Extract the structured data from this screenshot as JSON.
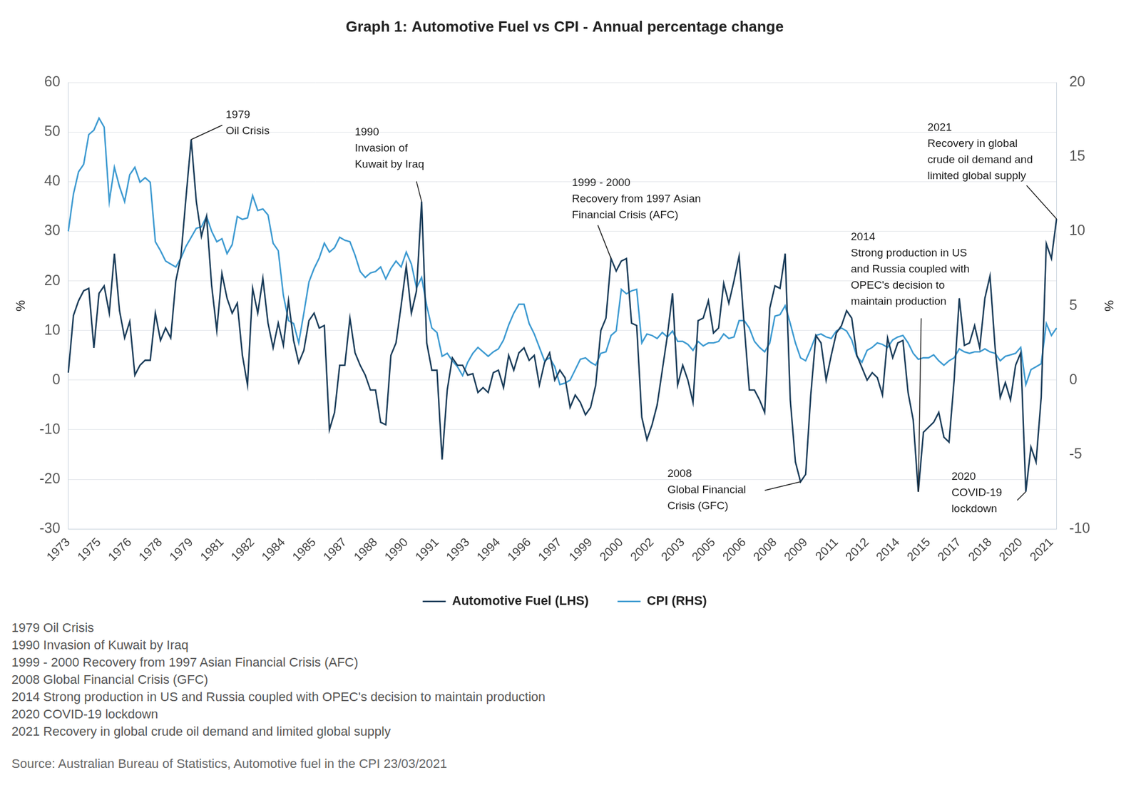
{
  "chart_data": {
    "type": "line",
    "title": "Graph 1: Automotive Fuel vs CPI - Annual percentage change",
    "ylabel": "%",
    "y2label": "%",
    "categories": [
      "1973",
      null,
      null,
      null,
      null,
      null,
      "1975",
      null,
      null,
      null,
      null,
      null,
      "1976",
      null,
      null,
      null,
      null,
      null,
      "1978",
      null,
      null,
      null,
      null,
      null,
      "1979",
      null,
      null,
      null,
      null,
      null,
      "1981",
      null,
      null,
      null,
      null,
      null,
      "1982",
      null,
      null,
      null,
      null,
      null,
      "1984",
      null,
      null,
      null,
      null,
      null,
      "1985",
      null,
      null,
      null,
      null,
      null,
      "1987",
      null,
      null,
      null,
      null,
      null,
      "1988",
      null,
      null,
      null,
      null,
      null,
      "1990",
      null,
      null,
      null,
      null,
      null,
      "1991",
      null,
      null,
      null,
      null,
      null,
      "1993",
      null,
      null,
      null,
      null,
      null,
      "1994",
      null,
      null,
      null,
      null,
      null,
      "1996",
      null,
      null,
      null,
      null,
      null,
      "1997",
      null,
      null,
      null,
      null,
      null,
      "1999",
      null,
      null,
      null,
      null,
      null,
      "2000",
      null,
      null,
      null,
      null,
      null,
      "2002",
      null,
      null,
      null,
      null,
      null,
      "2003",
      null,
      null,
      null,
      null,
      null,
      "2005",
      null,
      null,
      null,
      null,
      null,
      "2006",
      null,
      null,
      null,
      null,
      null,
      "2008",
      null,
      null,
      null,
      null,
      null,
      "2009",
      null,
      null,
      null,
      null,
      null,
      "2011",
      null,
      null,
      null,
      null,
      null,
      "2012",
      null,
      null,
      null,
      null,
      null,
      "2014",
      null,
      null,
      null,
      null,
      null,
      "2015",
      null,
      null,
      null,
      null,
      null,
      "2017",
      null,
      null,
      null,
      null,
      null,
      "2018",
      null,
      null,
      null,
      null,
      null,
      "2020",
      null,
      null,
      null,
      null,
      null,
      "2021",
      null
    ],
    "series": [
      {
        "name": "Automotive Fuel (LHS)",
        "color": "#1b3d5a",
        "values": [
          1.5,
          13,
          16,
          18,
          18.5,
          6.5,
          17.5,
          19,
          13.5,
          25.5,
          14,
          8.5,
          11.8,
          1,
          3,
          4,
          4,
          13.5,
          8,
          10.5,
          8.5,
          20,
          25,
          37,
          48.5,
          36,
          29,
          33,
          19,
          10,
          21.5,
          16.5,
          13.5,
          15.5,
          5,
          -1,
          18.5,
          13.5,
          20.5,
          11.5,
          6.5,
          11.5,
          7,
          16,
          8,
          3.5,
          6,
          12,
          13.5,
          10.5,
          11,
          -10,
          -6.5,
          3,
          3,
          12.5,
          5.5,
          3,
          1,
          -2,
          -2,
          -8.5,
          -9,
          5,
          7.5,
          15,
          23,
          13.5,
          18,
          36,
          7.5,
          2,
          2,
          -16,
          -2,
          4.5,
          3,
          3,
          1,
          1.3,
          -2.5,
          -1.5,
          -2.5,
          1.5,
          2,
          -1.5,
          5,
          2,
          5.5,
          6.5,
          4,
          5,
          -1,
          3.5,
          5.5,
          0,
          2,
          0.5,
          -5.5,
          -3,
          -4.5,
          -7,
          -5.5,
          -1,
          10,
          12.5,
          24.5,
          22,
          24,
          24.5,
          11.5,
          11,
          -7.5,
          -12,
          -9,
          -5,
          2,
          9,
          17.5,
          -1,
          3,
          0,
          -4.5,
          12,
          12.5,
          16,
          9.5,
          10.5,
          19.5,
          15.5,
          20,
          25,
          11,
          -2,
          -2,
          -4,
          -6.5,
          14.5,
          19,
          18.5,
          25.5,
          -4,
          -16.5,
          -20.5,
          -19,
          -3,
          9,
          7.5,
          0,
          5,
          9.5,
          11,
          14,
          12.5,
          5,
          2.5,
          0,
          1.5,
          0.5,
          -3,
          8.5,
          4.5,
          7.5,
          8,
          -2.5,
          -8,
          -22.5,
          -10.5,
          -9.5,
          -8.5,
          -6.5,
          -11.5,
          -12.5,
          0,
          16.5,
          7,
          7.5,
          11,
          6.5,
          16.5,
          21,
          6.5,
          -3.5,
          -0.5,
          -4,
          3,
          5.5,
          -22.5,
          -13.5,
          -16.5,
          -3.5,
          27.5,
          24.5,
          32.5
        ]
      },
      {
        "name": "CPI (RHS)",
        "color": "#3d9ad1",
        "axis": "y2",
        "values": [
          10,
          12.5,
          14,
          14.5,
          16.5,
          16.8,
          17.6,
          17,
          12,
          14.3,
          13,
          12,
          13.8,
          14.3,
          13.3,
          13.6,
          13.3,
          9.3,
          8.7,
          8,
          7.8,
          7.6,
          8.2,
          9,
          9.6,
          10.2,
          10.3,
          11,
          10,
          9.3,
          9.5,
          8.5,
          9.1,
          11,
          10.8,
          10.9,
          12.4,
          11.4,
          11.5,
          11.1,
          9.2,
          8.7,
          5.7,
          4,
          3.8,
          2.5,
          4.5,
          6.6,
          7.5,
          8.2,
          9.2,
          8.6,
          8.9,
          9.6,
          9.4,
          9.3,
          8.4,
          7.3,
          6.9,
          7.2,
          7.3,
          7.6,
          6.8,
          7.5,
          8,
          7.6,
          8.6,
          7.8,
          6.2,
          6.9,
          5,
          3.5,
          3.2,
          1.6,
          1.8,
          1.3,
          0.9,
          0.3,
          1.2,
          1.8,
          2.2,
          1.9,
          1.6,
          1.9,
          2.1,
          2.7,
          3.7,
          4.5,
          5.1,
          5.1,
          3.8,
          3.1,
          2.2,
          1.3,
          1.5,
          0.9,
          -0.3,
          -0.2,
          0,
          0.7,
          1.4,
          1.5,
          1.2,
          1,
          1.8,
          1.9,
          3,
          3.3,
          6.1,
          5.8,
          6,
          6.1,
          2.5,
          3.1,
          3,
          2.8,
          3.2,
          2.9,
          3.3,
          2.6,
          2.6,
          2.4,
          2,
          2.6,
          2.3,
          2.5,
          2.5,
          2.6,
          3.1,
          2.8,
          2.9,
          4,
          4,
          3.5,
          2.6,
          2.2,
          1.9,
          2.5,
          4.3,
          4.4,
          5,
          3.8,
          2.5,
          1.5,
          1.3,
          2.1,
          3,
          3.1,
          2.9,
          2.8,
          3.3,
          3.5,
          3.3,
          2.7,
          1.6,
          1.2,
          2,
          2.2,
          2.5,
          2.4,
          2.2,
          2.7,
          2.9,
          3,
          2.5,
          1.8,
          1.4,
          1.5,
          1.5,
          1.7,
          1.3,
          1,
          1.3,
          1.5,
          2.1,
          1.9,
          1.8,
          1.9,
          1.9,
          2.1,
          1.9,
          1.8,
          1.3,
          1.6,
          1.7,
          1.8,
          2.2,
          -0.3,
          0.7,
          0.9,
          1.1,
          3.8,
          3,
          3.5
        ]
      }
    ],
    "ylim": [
      -30,
      60
    ],
    "yticks": [
      -30,
      -20,
      -10,
      0,
      10,
      20,
      30,
      40,
      50,
      60
    ],
    "y2lim": [
      -10,
      20
    ],
    "y2ticks": [
      -10,
      -5,
      0,
      5,
      10,
      15,
      20
    ],
    "grid": true,
    "legend": "bottom",
    "annotations": [
      {
        "text": [
          "1979",
          "Oil Crisis"
        ]
      },
      {
        "text": [
          "1990",
          "Invasion of",
          "Kuwait by Iraq"
        ]
      },
      {
        "text": [
          "1999 - 2000",
          "Recovery from 1997 Asian",
          "Financial Crisis (AFC)"
        ]
      },
      {
        "text": [
          "2008",
          "Global Financial",
          "Crisis (GFC)"
        ]
      },
      {
        "text": [
          "2014",
          "Strong production in US",
          "and Russia coupled with",
          "OPEC's decision to",
          "maintain production"
        ]
      },
      {
        "text": [
          "2020",
          "COVID-19",
          "lockdown"
        ]
      },
      {
        "text": [
          "2021",
          "Recovery in global",
          "crude oil demand and",
          "limited global supply"
        ]
      }
    ],
    "notes": [
      "1979 Oil Crisis",
      "1990 Invasion of Kuwait by Iraq",
      "1999 - 2000 Recovery from 1997 Asian Financial Crisis (AFC)",
      "2008 Global Financial Crisis (GFC)",
      "2014 Strong production in US and Russia coupled with OPEC's decision to maintain production",
      "2020 COVID-19 lockdown",
      "2021 Recovery in global crude oil demand and limited global supply"
    ],
    "source": "Source: Australian Bureau of Statistics, Automotive fuel in the CPI 23/03/2021"
  }
}
